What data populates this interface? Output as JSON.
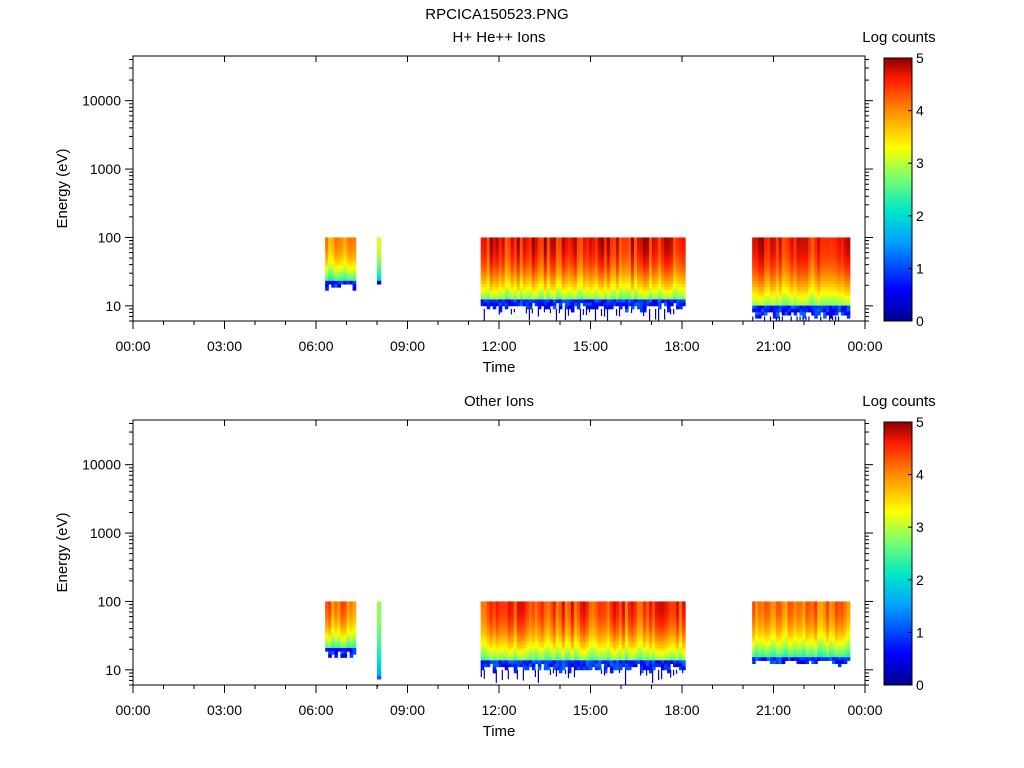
{
  "figure": {
    "title": "RPCICA150523.PNG"
  },
  "chart_data": [
    {
      "type": "heatmap",
      "title": "H+ He++ Ions",
      "xlabel": "Time",
      "ylabel": "Energy (eV)",
      "x_ticks": [
        "00:00",
        "03:00",
        "06:00",
        "09:00",
        "12:00",
        "15:00",
        "18:00",
        "21:00",
        "00:00"
      ],
      "xlim_hours": [
        0,
        24
      ],
      "y_scale": "log",
      "y_ticks": [
        "10",
        "100",
        "1000",
        "10000"
      ],
      "ylim": [
        6,
        45000
      ],
      "colorbar": {
        "label": "Log counts",
        "ticks": [
          "0",
          "1",
          "2",
          "3",
          "4",
          "5"
        ],
        "range": [
          0,
          5
        ],
        "colormap": "rainbow"
      },
      "data_intervals": [
        {
          "start_h": 6.3,
          "end_h": 7.3,
          "min_energy_eV": 18,
          "max_energy_eV": 100,
          "peak_log_counts": 4.2
        },
        {
          "start_h": 8.0,
          "end_h": 8.12,
          "min_energy_eV": 18,
          "max_energy_eV": 100,
          "peak_log_counts": 3.5
        },
        {
          "start_h": 11.4,
          "end_h": 18.1,
          "min_energy_eV": 9,
          "max_energy_eV": 100,
          "peak_log_counts": 5.0
        },
        {
          "start_h": 20.3,
          "end_h": 23.5,
          "min_energy_eV": 7,
          "max_energy_eV": 100,
          "peak_log_counts": 5.0
        }
      ]
    },
    {
      "type": "heatmap",
      "title": "Other Ions",
      "xlabel": "Time",
      "ylabel": "Energy (eV)",
      "x_ticks": [
        "00:00",
        "03:00",
        "06:00",
        "09:00",
        "12:00",
        "15:00",
        "18:00",
        "21:00",
        "00:00"
      ],
      "xlim_hours": [
        0,
        24
      ],
      "y_scale": "log",
      "y_ticks": [
        "10",
        "100",
        "1000",
        "10000"
      ],
      "ylim": [
        6,
        45000
      ],
      "colorbar": {
        "label": "Log counts",
        "ticks": [
          "0",
          "1",
          "2",
          "3",
          "4",
          "5"
        ],
        "range": [
          0,
          5
        ],
        "colormap": "rainbow"
      },
      "data_intervals": [
        {
          "start_h": 6.3,
          "end_h": 7.3,
          "min_energy_eV": 16,
          "max_energy_eV": 100,
          "peak_log_counts": 4.5
        },
        {
          "start_h": 8.0,
          "end_h": 8.12,
          "min_energy_eV": 6,
          "max_energy_eV": 100,
          "peak_log_counts": 3.0
        },
        {
          "start_h": 11.4,
          "end_h": 18.1,
          "min_energy_eV": 10,
          "max_energy_eV": 100,
          "peak_log_counts": 4.8
        },
        {
          "start_h": 20.3,
          "end_h": 23.5,
          "min_energy_eV": 12,
          "max_energy_eV": 100,
          "peak_log_counts": 4.5
        }
      ]
    }
  ]
}
